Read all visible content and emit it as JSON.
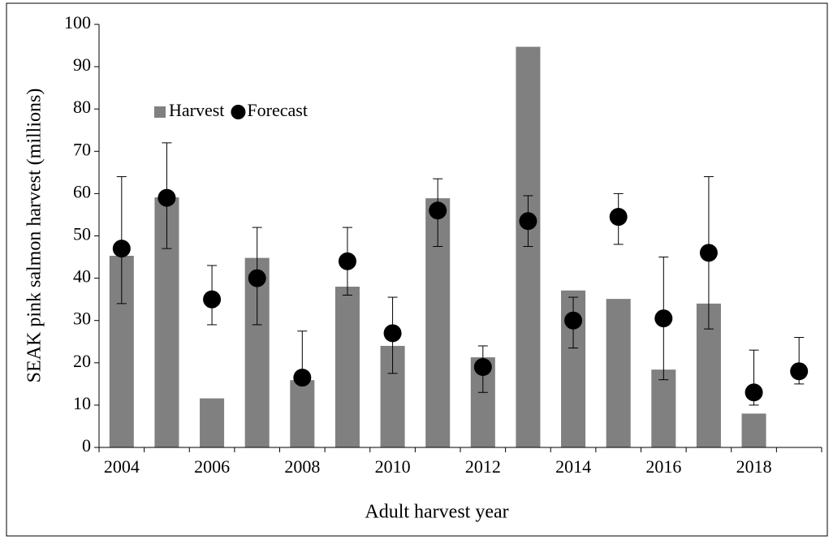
{
  "chart_data": {
    "type": "bar",
    "x_label": "Adult harvest year",
    "y_label": "SEAK pink salmon harvest (millions)",
    "x": [
      2004,
      2005,
      2006,
      2007,
      2008,
      2009,
      2010,
      2011,
      2012,
      2013,
      2014,
      2015,
      2016,
      2017,
      2018,
      2019
    ],
    "xlim": [
      2003.5,
      2019.5
    ],
    "xticks": [
      2004,
      2006,
      2008,
      2010,
      2012,
      2014,
      2016,
      2018
    ],
    "ylim": [
      0,
      100
    ],
    "yticks": [
      0,
      10,
      20,
      30,
      40,
      50,
      60,
      70,
      80,
      90,
      100
    ],
    "grid": false,
    "legend": "upper left",
    "series": [
      {
        "name": "Harvest",
        "type": "bar",
        "color": "#808080",
        "values": [
          45.3,
          59.1,
          11.6,
          44.8,
          15.9,
          38.0,
          24.0,
          58.9,
          21.3,
          94.7,
          37.1,
          35.1,
          18.4,
          34.0,
          8.0,
          null
        ]
      },
      {
        "name": "Forecast",
        "type": "scatter",
        "color": "#000000",
        "values": [
          47,
          59,
          35,
          40,
          16.5,
          44,
          27,
          56,
          19,
          53.5,
          30,
          54.5,
          30.5,
          46,
          13,
          18
        ],
        "lower": [
          34,
          47,
          29,
          29,
          16,
          36,
          17.5,
          47.5,
          13,
          47.5,
          23.5,
          48,
          16,
          28,
          10,
          15
        ],
        "upper": [
          64,
          72,
          43,
          52,
          27.5,
          52,
          35.5,
          63.5,
          24,
          59.5,
          35.5,
          60,
          45,
          64,
          23,
          26
        ]
      }
    ]
  }
}
